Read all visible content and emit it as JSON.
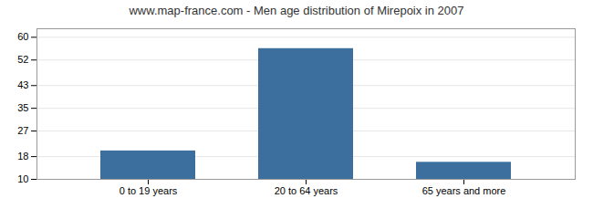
{
  "chart_data": {
    "type": "bar",
    "title": "www.map-france.com - Men age distribution of Mirepoix in 2007",
    "categories": [
      "0 to 19 years",
      "20 to 64 years",
      "65 years and more"
    ],
    "values": [
      20,
      56,
      16
    ],
    "color": "#3d6f9e",
    "ylim": [
      10,
      63
    ],
    "yticks": [
      10,
      18,
      27,
      35,
      43,
      52,
      60
    ],
    "grid": true
  }
}
